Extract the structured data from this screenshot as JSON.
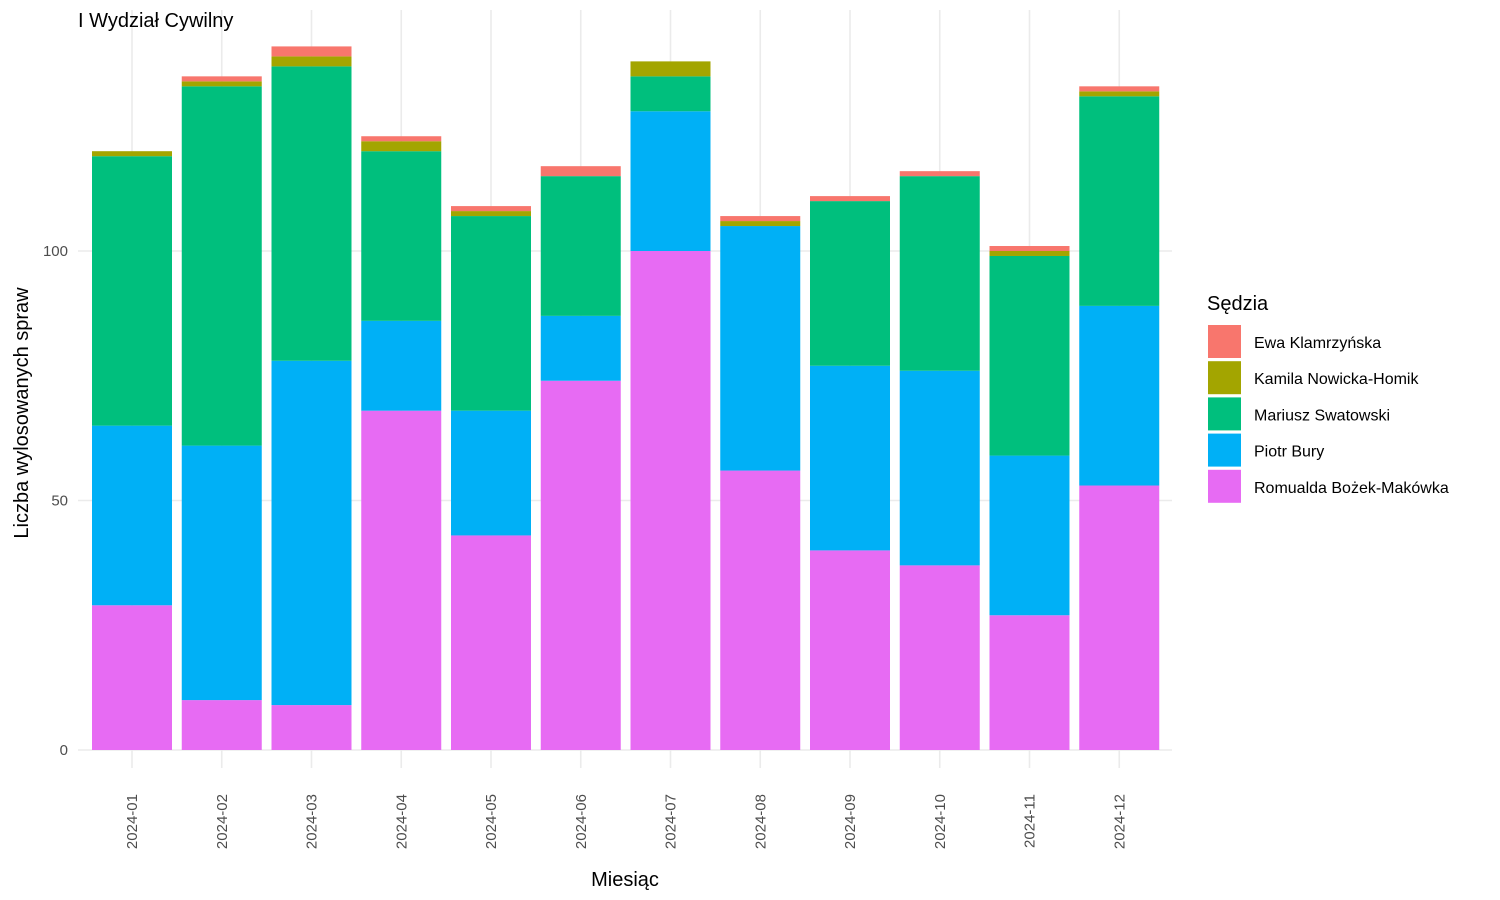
{
  "chart_data": {
    "type": "bar",
    "stacked": true,
    "title": "I Wydział Cywilny",
    "xlabel": "Miesiąc",
    "ylabel": "Liczba wylosowanych spraw",
    "ylim": [
      0,
      150
    ],
    "yticks": [
      0,
      50,
      100
    ],
    "grid": true,
    "legend_title": "Sędzia",
    "legend_position": "right",
    "categories": [
      "2024-01",
      "2024-02",
      "2024-03",
      "2024-04",
      "2024-05",
      "2024-06",
      "2024-07",
      "2024-08",
      "2024-09",
      "2024-10",
      "2024-11",
      "2024-12"
    ],
    "series": [
      {
        "name": "Romualda Bożek-Makówka",
        "color": "#E76BF3",
        "values": [
          29,
          10,
          9,
          68,
          43,
          74,
          100,
          56,
          40,
          37,
          27,
          53
        ]
      },
      {
        "name": "Piotr Bury",
        "color": "#00B0F6",
        "values": [
          36,
          51,
          69,
          18,
          25,
          13,
          28,
          49,
          37,
          39,
          32,
          36
        ]
      },
      {
        "name": "Mariusz Swatowski",
        "color": "#00BF7D",
        "values": [
          54,
          72,
          59,
          34,
          39,
          28,
          7,
          0,
          33,
          39,
          40,
          42
        ]
      },
      {
        "name": "Kamila Nowicka-Homik",
        "color": "#A3A500",
        "values": [
          1,
          1,
          2,
          2,
          1,
          0,
          3,
          1,
          0,
          0,
          1,
          1
        ]
      },
      {
        "name": "Ewa Klamrzyńska",
        "color": "#F8766D",
        "values": [
          0,
          1,
          2,
          1,
          1,
          2,
          0,
          1,
          1,
          1,
          1,
          1
        ]
      }
    ],
    "legend_order": [
      "Ewa Klamrzyńska",
      "Kamila Nowicka-Homik",
      "Mariusz Swatowski",
      "Piotr Bury",
      "Romualda Bożek-Makówka"
    ]
  }
}
